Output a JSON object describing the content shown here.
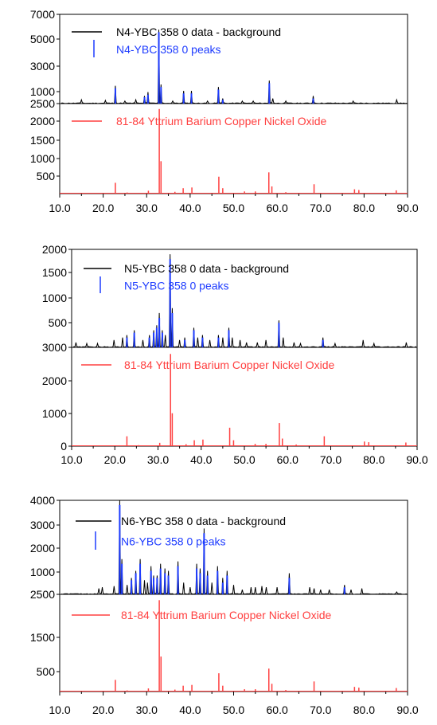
{
  "chart_data": [
    {
      "type": "line",
      "x_ticks": [
        "10.0",
        "20.0",
        "30.0",
        "40.0",
        "50.0",
        "60.0",
        "70.0",
        "80.0",
        "90.0"
      ],
      "xlim": [
        10,
        90
      ],
      "top": {
        "ylim": [
          0,
          7000
        ],
        "y_ticks": [
          "7000",
          "5000",
          "3000",
          "1000"
        ],
        "legend": [
          {
            "name": "N4-YBC 358 0 data - background",
            "color": "#000000"
          },
          {
            "name": "N4-YBC 358 0 peaks",
            "color": "#1e3cff"
          }
        ],
        "data_peaks": [
          [
            15.0,
            300
          ],
          [
            20.5,
            250
          ],
          [
            22.8,
            1400
          ],
          [
            25.0,
            200
          ],
          [
            27.5,
            300
          ],
          [
            29.5,
            600
          ],
          [
            30.3,
            900
          ],
          [
            32.8,
            5800
          ],
          [
            33.3,
            1500
          ],
          [
            36.0,
            200
          ],
          [
            38.5,
            1000
          ],
          [
            40.3,
            1000
          ],
          [
            44.0,
            200
          ],
          [
            46.5,
            1300
          ],
          [
            47.5,
            400
          ],
          [
            52.0,
            200
          ],
          [
            54.5,
            200
          ],
          [
            58.2,
            1800
          ],
          [
            59.0,
            400
          ],
          [
            62.0,
            200
          ],
          [
            68.3,
            600
          ],
          [
            77.5,
            200
          ],
          [
            87.5,
            300
          ]
        ],
        "stick_peaks": [
          [
            22.8,
            1200
          ],
          [
            29.5,
            500
          ],
          [
            30.3,
            700
          ],
          [
            32.8,
            5600
          ],
          [
            33.3,
            1300
          ],
          [
            38.5,
            800
          ],
          [
            40.3,
            800
          ],
          [
            46.5,
            1100
          ],
          [
            47.5,
            300
          ],
          [
            58.2,
            1600
          ],
          [
            68.3,
            400
          ]
        ]
      },
      "bottom": {
        "ylim": [
          0,
          2500
        ],
        "y_ticks": [
          "2500",
          "2000",
          "1500",
          "1000",
          "500"
        ],
        "legend": [
          {
            "name": "81-84 Yttrium Barium Copper Nickel Oxide",
            "color": "#ff4040"
          }
        ],
        "stick_peaks": [
          [
            22.8,
            300
          ],
          [
            25.5,
            30
          ],
          [
            30.4,
            80
          ],
          [
            32.9,
            2350
          ],
          [
            33.3,
            900
          ],
          [
            36.5,
            50
          ],
          [
            38.4,
            150
          ],
          [
            40.4,
            170
          ],
          [
            46.6,
            470
          ],
          [
            47.5,
            150
          ],
          [
            52.5,
            60
          ],
          [
            55.0,
            60
          ],
          [
            58.1,
            590
          ],
          [
            58.8,
            200
          ],
          [
            62.0,
            40
          ],
          [
            68.5,
            260
          ],
          [
            77.8,
            120
          ],
          [
            78.8,
            100
          ],
          [
            87.4,
            90
          ]
        ]
      }
    },
    {
      "type": "line",
      "x_ticks": [
        "10.0",
        "20.0",
        "30.0",
        "40.0",
        "50.0",
        "60.0",
        "70.0",
        "80.0",
        "90.0"
      ],
      "xlim": [
        10,
        90
      ],
      "top": {
        "ylim": [
          0,
          2000
        ],
        "y_ticks": [
          "2000",
          "1500",
          "1000",
          "500"
        ],
        "legend": [
          {
            "name": "N5-YBC 358 0 data - background",
            "color": "#000000"
          },
          {
            "name": "N5-YBC 358 0 peaks",
            "color": "#1e3cff"
          }
        ],
        "data_peaks": [
          [
            11.0,
            100
          ],
          [
            13.5,
            80
          ],
          [
            16.0,
            80
          ],
          [
            19.8,
            150
          ],
          [
            21.8,
            200
          ],
          [
            22.8,
            250
          ],
          [
            24.5,
            350
          ],
          [
            26.5,
            150
          ],
          [
            28.0,
            250
          ],
          [
            29.0,
            350
          ],
          [
            29.7,
            450
          ],
          [
            30.3,
            700
          ],
          [
            31.0,
            350
          ],
          [
            31.7,
            250
          ],
          [
            32.8,
            1900
          ],
          [
            33.3,
            800
          ],
          [
            35.0,
            150
          ],
          [
            36.2,
            200
          ],
          [
            38.3,
            400
          ],
          [
            39.2,
            200
          ],
          [
            40.3,
            250
          ],
          [
            42.0,
            150
          ],
          [
            44.0,
            250
          ],
          [
            45.0,
            200
          ],
          [
            46.4,
            400
          ],
          [
            47.2,
            200
          ],
          [
            49.0,
            150
          ],
          [
            50.5,
            100
          ],
          [
            53.0,
            100
          ],
          [
            55.0,
            150
          ],
          [
            58.0,
            550
          ],
          [
            59.0,
            200
          ],
          [
            61.5,
            100
          ],
          [
            63.0,
            80
          ],
          [
            68.2,
            200
          ],
          [
            71.0,
            80
          ],
          [
            77.5,
            150
          ],
          [
            80.0,
            80
          ],
          [
            87.5,
            100
          ]
        ],
        "stick_peaks": [
          [
            22.8,
            200
          ],
          [
            24.5,
            300
          ],
          [
            28.0,
            200
          ],
          [
            29.0,
            300
          ],
          [
            29.7,
            400
          ],
          [
            30.3,
            600
          ],
          [
            31.0,
            300
          ],
          [
            32.8,
            1800
          ],
          [
            33.3,
            700
          ],
          [
            36.2,
            150
          ],
          [
            38.3,
            350
          ],
          [
            40.3,
            200
          ],
          [
            44.0,
            200
          ],
          [
            46.4,
            350
          ],
          [
            58.0,
            500
          ],
          [
            68.2,
            150
          ]
        ]
      },
      "bottom": {
        "ylim": [
          0,
          3000
        ],
        "y_ticks": [
          "3000",
          "2000",
          "1000",
          "0"
        ],
        "legend": [
          {
            "name": "81-84 Yttrium Barium Copper Nickel Oxide",
            "color": "#ff4040"
          }
        ],
        "stick_peaks": [
          [
            22.8,
            300
          ],
          [
            25.5,
            30
          ],
          [
            30.4,
            100
          ],
          [
            32.9,
            2800
          ],
          [
            33.3,
            1000
          ],
          [
            36.5,
            60
          ],
          [
            38.4,
            180
          ],
          [
            40.4,
            200
          ],
          [
            46.6,
            560
          ],
          [
            47.5,
            180
          ],
          [
            52.5,
            70
          ],
          [
            55.0,
            70
          ],
          [
            58.1,
            700
          ],
          [
            58.8,
            230
          ],
          [
            62.0,
            50
          ],
          [
            68.5,
            300
          ],
          [
            77.8,
            140
          ],
          [
            78.8,
            120
          ],
          [
            87.4,
            110
          ]
        ]
      }
    },
    {
      "type": "line",
      "x_ticks": [
        "10.0",
        "20.0",
        "30.0",
        "40.0",
        "50.0",
        "60.0",
        "70.0",
        "80.0",
        "90.0"
      ],
      "xlim": [
        10,
        90
      ],
      "top": {
        "ylim": [
          0,
          4000
        ],
        "y_ticks": [
          "4000",
          "3000",
          "2000",
          "1000"
        ],
        "legend": [
          {
            "name": "N6-YBC 358 0 data - background",
            "color": "#000000"
          },
          {
            "name": "N6-YBC 358 0 peaks",
            "color": "#1e3cff"
          }
        ],
        "data_peaks": [
          [
            19.0,
            250
          ],
          [
            19.8,
            300
          ],
          [
            22.5,
            350
          ],
          [
            23.8,
            4000
          ],
          [
            24.3,
            1500
          ],
          [
            25.5,
            400
          ],
          [
            26.5,
            700
          ],
          [
            27.5,
            1000
          ],
          [
            28.5,
            1500
          ],
          [
            29.5,
            600
          ],
          [
            30.2,
            500
          ],
          [
            31.0,
            1200
          ],
          [
            31.6,
            800
          ],
          [
            32.4,
            800
          ],
          [
            33.2,
            1300
          ],
          [
            34.2,
            1100
          ],
          [
            35.0,
            1000
          ],
          [
            37.2,
            1400
          ],
          [
            38.5,
            500
          ],
          [
            40.0,
            300
          ],
          [
            41.5,
            1300
          ],
          [
            42.3,
            1100
          ],
          [
            43.2,
            2800
          ],
          [
            44.0,
            1000
          ],
          [
            45.0,
            500
          ],
          [
            46.3,
            1200
          ],
          [
            47.5,
            700
          ],
          [
            48.5,
            1000
          ],
          [
            50.0,
            400
          ],
          [
            52.0,
            200
          ],
          [
            54.0,
            300
          ],
          [
            55.0,
            300
          ],
          [
            56.5,
            350
          ],
          [
            57.5,
            300
          ],
          [
            60.0,
            300
          ],
          [
            62.8,
            900
          ],
          [
            67.5,
            300
          ],
          [
            68.5,
            250
          ],
          [
            70.0,
            200
          ],
          [
            72.0,
            200
          ],
          [
            75.5,
            400
          ],
          [
            77.0,
            200
          ],
          [
            79.5,
            250
          ],
          [
            87.5,
            100
          ]
        ],
        "stick_peaks": [
          [
            23.8,
            3800
          ],
          [
            24.3,
            1300
          ],
          [
            26.5,
            600
          ],
          [
            27.5,
            900
          ],
          [
            28.5,
            1300
          ],
          [
            31.0,
            1000
          ],
          [
            31.6,
            700
          ],
          [
            32.4,
            700
          ],
          [
            33.2,
            1100
          ],
          [
            34.2,
            900
          ],
          [
            35.0,
            800
          ],
          [
            37.2,
            1200
          ],
          [
            41.5,
            1100
          ],
          [
            42.3,
            900
          ],
          [
            43.2,
            2600
          ],
          [
            44.0,
            800
          ],
          [
            46.3,
            1000
          ],
          [
            47.5,
            500
          ],
          [
            48.5,
            800
          ],
          [
            62.8,
            700
          ],
          [
            75.5,
            300
          ]
        ]
      },
      "bottom": {
        "ylim": [
          0,
          2500
        ],
        "y_ticks": [
          "2500",
          "1500",
          "500"
        ],
        "legend": [
          {
            "name": "81-84 Yttrium Barium Copper Nickel Oxide",
            "color": "#ff4040"
          }
        ],
        "stick_peaks": [
          [
            22.8,
            300
          ],
          [
            25.5,
            30
          ],
          [
            30.4,
            80
          ],
          [
            32.9,
            2350
          ],
          [
            33.3,
            900
          ],
          [
            36.5,
            50
          ],
          [
            38.4,
            150
          ],
          [
            40.4,
            170
          ],
          [
            46.6,
            470
          ],
          [
            47.5,
            150
          ],
          [
            52.5,
            60
          ],
          [
            55.0,
            60
          ],
          [
            58.1,
            590
          ],
          [
            58.8,
            200
          ],
          [
            62.0,
            40
          ],
          [
            68.5,
            260
          ],
          [
            77.8,
            120
          ],
          [
            78.8,
            100
          ],
          [
            87.4,
            90
          ]
        ]
      }
    }
  ]
}
